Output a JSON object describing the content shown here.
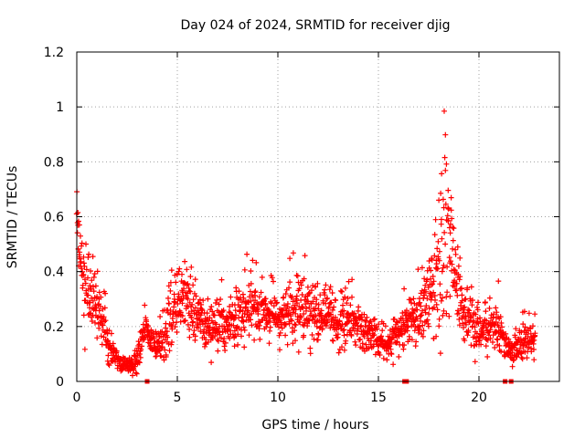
{
  "chart_data": {
    "type": "scatter",
    "title": "Day 024 of 2024, SRMTID for receiver djig",
    "xlabel": "GPS time / hours",
    "ylabel": "SRMTID / TECUs",
    "xlim": [
      0,
      24
    ],
    "ylim": [
      0,
      1.2
    ],
    "xticks": [
      0,
      5,
      10,
      15,
      20
    ],
    "xtick_labels": [
      "0",
      "5",
      "10",
      "15",
      "20"
    ],
    "yticks": [
      0,
      0.2,
      0.4,
      0.6,
      0.8,
      1.0,
      1.2
    ],
    "ytick_labels": [
      "0",
      "0.2",
      "0.4",
      "0.6",
      "0.8",
      "1",
      "1.2"
    ],
    "grid": true,
    "marker": "+",
    "color": "#ff0000",
    "series_shape": {
      "name": "SRMTID",
      "hours": [
        0.0,
        0.1,
        0.25,
        0.5,
        0.8,
        1.0,
        1.3,
        1.6,
        2.0,
        2.4,
        2.8,
        3.1,
        3.4,
        3.7,
        4.0,
        4.3,
        4.6,
        5.0,
        5.3,
        5.7,
        6.0,
        6.5,
        7.0,
        7.5,
        8.0,
        8.5,
        9.0,
        9.5,
        10.0,
        10.5,
        11.0,
        11.5,
        12.0,
        12.5,
        13.0,
        13.5,
        14.0,
        14.5,
        15.0,
        15.5,
        16.0,
        16.5,
        17.0,
        17.4,
        17.8,
        18.1,
        18.4,
        18.7,
        19.0,
        19.4,
        19.8,
        20.2,
        20.6,
        21.0,
        21.4,
        21.8,
        22.2,
        22.8
      ],
      "center": [
        0.7,
        0.5,
        0.38,
        0.33,
        0.3,
        0.28,
        0.2,
        0.12,
        0.08,
        0.06,
        0.06,
        0.1,
        0.2,
        0.15,
        0.12,
        0.15,
        0.22,
        0.28,
        0.3,
        0.27,
        0.25,
        0.22,
        0.2,
        0.21,
        0.23,
        0.25,
        0.27,
        0.25,
        0.22,
        0.24,
        0.28,
        0.26,
        0.24,
        0.22,
        0.2,
        0.23,
        0.2,
        0.17,
        0.14,
        0.13,
        0.17,
        0.22,
        0.25,
        0.28,
        0.35,
        0.5,
        0.55,
        0.45,
        0.3,
        0.22,
        0.18,
        0.17,
        0.2,
        0.2,
        0.12,
        0.11,
        0.14,
        0.14
      ],
      "spread": [
        0.14,
        0.1,
        0.1,
        0.1,
        0.08,
        0.1,
        0.07,
        0.05,
        0.03,
        0.02,
        0.02,
        0.05,
        0.04,
        0.05,
        0.04,
        0.07,
        0.1,
        0.13,
        0.1,
        0.1,
        0.09,
        0.08,
        0.08,
        0.09,
        0.09,
        0.09,
        0.09,
        0.08,
        0.07,
        0.09,
        0.1,
        0.09,
        0.1,
        0.08,
        0.08,
        0.08,
        0.07,
        0.06,
        0.05,
        0.05,
        0.07,
        0.08,
        0.1,
        0.12,
        0.25,
        0.3,
        0.25,
        0.15,
        0.1,
        0.08,
        0.07,
        0.07,
        0.07,
        0.07,
        0.04,
        0.05,
        0.05,
        0.06
      ],
      "points_per_hour": 80
    },
    "zero_markers_hours": [
      3.5,
      16.3,
      16.4,
      21.3,
      21.6
    ]
  }
}
